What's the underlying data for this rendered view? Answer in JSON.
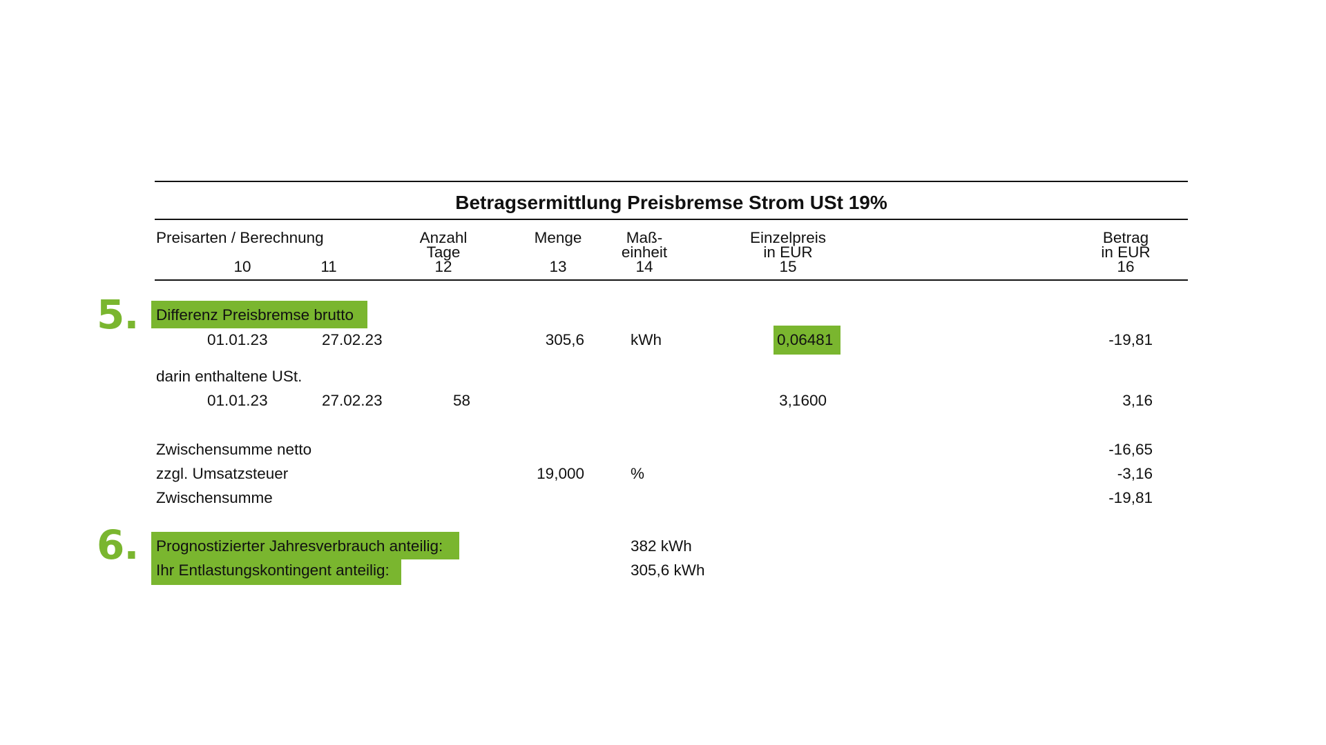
{
  "title": "Betragsermittlung Preisbremse Strom USt 19%",
  "accent_color": "#7ab62f",
  "header": {
    "col_preisarten": "Preisarten / Berechnung",
    "col_10": "10",
    "col_11": "11",
    "col_anzahl_l1": "Anzahl",
    "col_anzahl_l2": "Tage",
    "col_12": "12",
    "col_menge": "Menge",
    "col_13": "13",
    "col_mass_l1": "Maß-",
    "col_mass_l2": "einheit",
    "col_14": "14",
    "col_einzel_l1": "Einzelpreis",
    "col_einzel_l2": "in EUR",
    "col_15": "15",
    "col_betrag_l1": "Betrag",
    "col_betrag_l2": "in EUR",
    "col_16": "16"
  },
  "markers": {
    "step5": "5.",
    "step6": "6."
  },
  "section5": {
    "label": "Differenz Preisbremse brutto",
    "row": {
      "from": "01.01.23",
      "to": "27.02.23",
      "menge": "305,6",
      "einheit": "kWh",
      "einzelpreis": "0,06481",
      "betrag": "-19,81"
    }
  },
  "ust": {
    "label": "darin enthaltene USt.",
    "row": {
      "from": "01.01.23",
      "to": "27.02.23",
      "tage": "58",
      "einzelpreis": "3,1600",
      "betrag": "3,16"
    }
  },
  "summary": {
    "netto_label": "Zwischensumme netto",
    "netto_value": "-16,65",
    "ust_label": "zzgl. Umsatzsteuer",
    "ust_menge": "19,000",
    "ust_einheit": "%",
    "ust_value": "-3,16",
    "sum_label": "Zwischensumme",
    "sum_value": "-19,81"
  },
  "section6": {
    "jahresverbrauch_label": "Prognostizierter Jahresverbrauch anteilig:",
    "jahresverbrauch_value": "382 kWh",
    "kontingent_label": "Ihr Entlastungskontingent anteilig:",
    "kontingent_value": "305,6 kWh"
  }
}
